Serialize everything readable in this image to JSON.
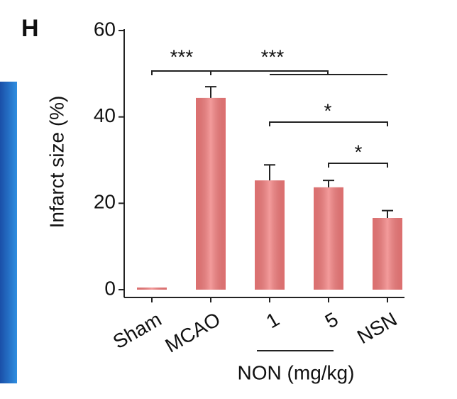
{
  "chart_data": {
    "type": "bar",
    "panel_label": "H",
    "y_label": "Infarct size (%)",
    "categories": [
      "Sham",
      "MCAO",
      "1",
      "5",
      "NSN"
    ],
    "values": [
      0.5,
      44.4,
      25.3,
      23.7,
      16.6
    ],
    "errors": [
      0,
      2.6,
      3.6,
      1.6,
      1.7
    ],
    "color": "#f07a7a",
    "ylim": [
      0,
      60
    ],
    "yticks": [
      0,
      20,
      40,
      60
    ],
    "group_label": "NON (mg/kg)",
    "annotations": [
      "***",
      "***",
      "*",
      "*"
    ]
  }
}
